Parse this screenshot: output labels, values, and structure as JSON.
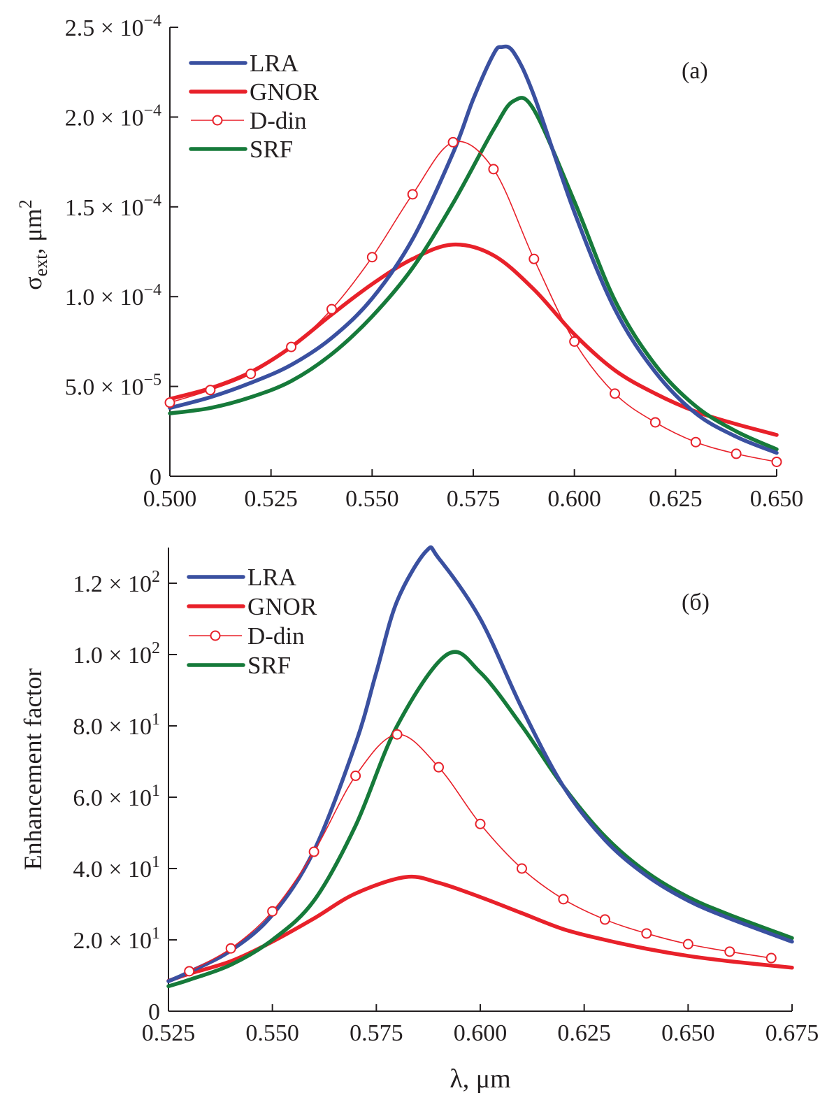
{
  "colors": {
    "LRA": "#3a50a0",
    "GNOR": "#e8212a",
    "D-din": "#e8212a",
    "SRF": "#167a3a",
    "axis": "#231f20"
  },
  "chart_data": [
    {
      "type": "line",
      "panel_label": "(a)",
      "xlabel": "",
      "ylabel": {
        "symbol": "σ",
        "sub": "ext",
        "rest": ", μm",
        "sup": "2"
      },
      "xlim": [
        0.5,
        0.65
      ],
      "ylim": [
        0,
        0.00025
      ],
      "grid": false,
      "legend_position": "top-left",
      "x_ticks": [
        0.5,
        0.525,
        0.55,
        0.575,
        0.6,
        0.625,
        0.65
      ],
      "x_tick_labels": [
        "0.500",
        "0.525",
        "0.550",
        "0.575",
        "0.600",
        "0.625",
        "0.650"
      ],
      "y_ticks": [
        0,
        5e-05,
        0.0001,
        0.00015,
        0.0002,
        0.00025
      ],
      "y_tick_labels": [
        {
          "base": "0",
          "exp": ""
        },
        {
          "base": "5.0 × 10",
          "exp": "−5"
        },
        {
          "base": "1.0 × 10",
          "exp": "−4"
        },
        {
          "base": "1.5 × 10",
          "exp": "−4"
        },
        {
          "base": "2.0 × 10",
          "exp": "−4"
        },
        {
          "base": "2.5 × 10",
          "exp": "−4"
        }
      ],
      "series": [
        {
          "name": "LRA",
          "style": "thick",
          "x": [
            0.5,
            0.51,
            0.52,
            0.53,
            0.54,
            0.55,
            0.56,
            0.57,
            0.575,
            0.58,
            0.582,
            0.585,
            0.59,
            0.6,
            0.61,
            0.62,
            0.63,
            0.64,
            0.65
          ],
          "y": [
            3.8e-05,
            4.4e-05,
            5.2e-05,
            6.2e-05,
            7.7e-05,
            9.9e-05,
            0.000132,
            0.00018,
            0.00021,
            0.000235,
            0.000239,
            0.000236,
            0.000212,
            0.000147,
            9.3e-05,
            5.8e-05,
            3.5e-05,
            2.2e-05,
            1.3e-05
          ]
        },
        {
          "name": "GNOR",
          "style": "thick",
          "x": [
            0.5,
            0.51,
            0.52,
            0.53,
            0.54,
            0.55,
            0.56,
            0.57,
            0.58,
            0.59,
            0.6,
            0.61,
            0.62,
            0.63,
            0.64,
            0.65
          ],
          "y": [
            4.3e-05,
            4.9e-05,
            5.8e-05,
            7.2e-05,
            9e-05,
            0.000107,
            0.000121,
            0.000129,
            0.000123,
            0.000104,
            7.9e-05,
            5.9e-05,
            4.6e-05,
            3.6e-05,
            2.9e-05,
            2.3e-05
          ]
        },
        {
          "name": "D-din",
          "style": "markers",
          "x": [
            0.5,
            0.51,
            0.52,
            0.53,
            0.54,
            0.55,
            0.56,
            0.57,
            0.58,
            0.59,
            0.6,
            0.61,
            0.62,
            0.63,
            0.64,
            0.65
          ],
          "y": [
            4.1e-05,
            4.8e-05,
            5.7e-05,
            7.2e-05,
            9.3e-05,
            0.000122,
            0.000157,
            0.000186,
            0.000171,
            0.000121,
            7.5e-05,
            4.6e-05,
            3e-05,
            1.9e-05,
            1.25e-05,
            8e-06
          ]
        },
        {
          "name": "SRF",
          "style": "thick",
          "x": [
            0.5,
            0.51,
            0.52,
            0.53,
            0.54,
            0.55,
            0.56,
            0.57,
            0.58,
            0.585,
            0.59,
            0.6,
            0.61,
            0.62,
            0.63,
            0.64,
            0.65
          ],
          "y": [
            3.5e-05,
            3.8e-05,
            4.4e-05,
            5.3e-05,
            6.8e-05,
            8.9e-05,
            0.000116,
            0.000152,
            0.000193,
            0.000209,
            0.000204,
            0.000153,
            9.8e-05,
            6.2e-05,
            3.9e-05,
            2.5e-05,
            1.5e-05
          ]
        }
      ]
    },
    {
      "type": "line",
      "panel_label": "(б)",
      "xlabel": "λ, μm",
      "ylabel": {
        "symbol": "Enhancement factor",
        "sub": "",
        "rest": "",
        "sup": ""
      },
      "xlim": [
        0.525,
        0.675
      ],
      "ylim": [
        0,
        130
      ],
      "grid": false,
      "legend_position": "top-left",
      "x_ticks": [
        0.525,
        0.55,
        0.575,
        0.6,
        0.625,
        0.65,
        0.675
      ],
      "x_tick_labels": [
        "0.525",
        "0.550",
        "0.575",
        "0.600",
        "0.625",
        "0.650",
        "0.675"
      ],
      "y_ticks": [
        0,
        20,
        40,
        60,
        80,
        100,
        120
      ],
      "y_tick_labels": [
        {
          "base": "0",
          "exp": ""
        },
        {
          "base": "2.0 × 10",
          "exp": "1"
        },
        {
          "base": "4.0 × 10",
          "exp": "1"
        },
        {
          "base": "6.0 × 10",
          "exp": "1"
        },
        {
          "base": "8.0 × 10",
          "exp": "1"
        },
        {
          "base": "1.0 × 10",
          "exp": "2"
        },
        {
          "base": "1.2 × 10",
          "exp": "2"
        }
      ],
      "series": [
        {
          "name": "LRA",
          "style": "thick",
          "x": [
            0.525,
            0.53,
            0.54,
            0.55,
            0.56,
            0.57,
            0.575,
            0.58,
            0.587,
            0.59,
            0.6,
            0.61,
            0.62,
            0.63,
            0.64,
            0.65,
            0.66,
            0.675
          ],
          "y": [
            8.4,
            11,
            17,
            27,
            45,
            75,
            95,
            115,
            129,
            127,
            110,
            85,
            63,
            48,
            38,
            31,
            26,
            19.5
          ]
        },
        {
          "name": "GNOR",
          "style": "thick",
          "x": [
            0.525,
            0.53,
            0.54,
            0.55,
            0.56,
            0.57,
            0.582,
            0.59,
            0.6,
            0.61,
            0.62,
            0.63,
            0.64,
            0.65,
            0.66,
            0.675
          ],
          "y": [
            8.5,
            10.5,
            14,
            19.5,
            26,
            33,
            37.6,
            36,
            32,
            27.5,
            23,
            20,
            17.5,
            15.5,
            14,
            12.2
          ]
        },
        {
          "name": "D-din",
          "style": "markers",
          "x": [
            0.53,
            0.54,
            0.55,
            0.56,
            0.57,
            0.58,
            0.59,
            0.6,
            0.61,
            0.62,
            0.63,
            0.64,
            0.65,
            0.66,
            0.67
          ],
          "y": [
            11.2,
            17.6,
            28,
            44.7,
            66,
            77.6,
            68.4,
            52.5,
            40,
            31.4,
            25.7,
            21.8,
            18.8,
            16.7,
            14.9
          ]
        },
        {
          "name": "SRF",
          "style": "thick",
          "x": [
            0.525,
            0.53,
            0.54,
            0.55,
            0.56,
            0.57,
            0.58,
            0.592,
            0.6,
            0.61,
            0.62,
            0.63,
            0.64,
            0.65,
            0.66,
            0.675
          ],
          "y": [
            7,
            8.8,
            13,
            20,
            31,
            52,
            80,
            100,
            95,
            80,
            63,
            49,
            39,
            32,
            27,
            20.5
          ]
        }
      ]
    }
  ]
}
